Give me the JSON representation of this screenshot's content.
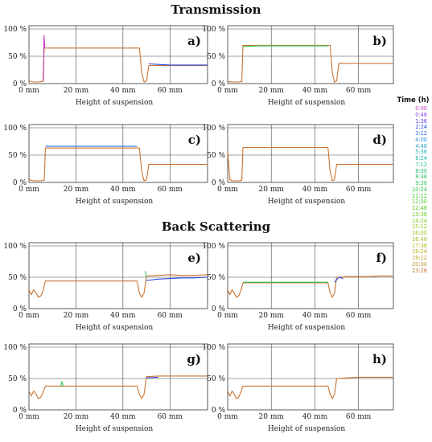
{
  "titles": {
    "transmission": "Transmission",
    "backscattering": "Back Scattering"
  },
  "legend": {
    "title": "Time (h)",
    "entries": [
      {
        "label": "0:00",
        "color": "#c040c0"
      },
      {
        "label": "0:48",
        "color": "#8a44d8"
      },
      {
        "label": "1:36",
        "color": "#5a3ee0"
      },
      {
        "label": "2:24",
        "color": "#2e49e0"
      },
      {
        "label": "3:12",
        "color": "#2a6ae2"
      },
      {
        "label": "4:00",
        "color": "#2a8ad8"
      },
      {
        "label": "4:48",
        "color": "#2aa0cc"
      },
      {
        "label": "5:36",
        "color": "#24b0c0"
      },
      {
        "label": "6:24",
        "color": "#22b8a8"
      },
      {
        "label": "7:12",
        "color": "#22bc92"
      },
      {
        "label": "8:00",
        "color": "#24c07c"
      },
      {
        "label": "8:48",
        "color": "#28c466"
      },
      {
        "label": "9:36",
        "color": "#2cc652"
      },
      {
        "label": "10:24",
        "color": "#30c840"
      },
      {
        "label": "11:12",
        "color": "#3cca30"
      },
      {
        "label": "12:00",
        "color": "#4ccc28"
      },
      {
        "label": "12:48",
        "color": "#5ccc24"
      },
      {
        "label": "13:36",
        "color": "#6ccc22"
      },
      {
        "label": "14:24",
        "color": "#7cca20"
      },
      {
        "label": "15:12",
        "color": "#8cc820"
      },
      {
        "label": "16:00",
        "color": "#9cc420"
      },
      {
        "label": "16:48",
        "color": "#aabe20"
      },
      {
        "label": "17:36",
        "color": "#b4b622"
      },
      {
        "label": "18:24",
        "color": "#bcac24"
      },
      {
        "label": "19:12",
        "color": "#c0a028"
      },
      {
        "label": "20:00",
        "color": "#c4942c"
      },
      {
        "label": "23:28",
        "color": "#c87432"
      }
    ]
  },
  "chart_data": [
    {
      "type": "line",
      "panel": "a)",
      "group": "Transmission",
      "xlabel": "Height of suspension",
      "x_ticks": [
        "0 mm",
        "20 mm",
        "40 mm",
        "60 mm"
      ],
      "y_ticks": [
        "0 %",
        "50 %",
        "100 %"
      ],
      "xlim": [
        0,
        76
      ],
      "ylim": [
        0,
        100
      ],
      "series": [
        {
          "color": "#c87432",
          "points": [
            [
              0,
              5
            ],
            [
              2,
              3
            ],
            [
              4,
              3
            ],
            [
              6,
              4
            ],
            [
              6.5,
              65
            ],
            [
              10,
              65
            ],
            [
              20,
              65
            ],
            [
              30,
              65
            ],
            [
              40,
              65
            ],
            [
              47,
              65
            ],
            [
              48,
              20
            ],
            [
              49,
              3
            ],
            [
              50,
              5
            ],
            [
              51,
              33
            ],
            [
              55,
              33
            ],
            [
              60,
              33
            ],
            [
              65,
              33
            ],
            [
              70,
              33
            ],
            [
              76,
              33
            ]
          ]
        },
        {
          "color": "#2a49e0",
          "points": [
            [
              51,
              36
            ],
            [
              55,
              35
            ],
            [
              60,
              34
            ],
            [
              65,
              34
            ],
            [
              70,
              34
            ],
            [
              76,
              34
            ]
          ]
        },
        {
          "color": "#c040c0",
          "points": [
            [
              6.2,
              5
            ],
            [
              6.4,
              88
            ],
            [
              6.8,
              65
            ]
          ]
        }
      ]
    },
    {
      "type": "line",
      "panel": "b)",
      "group": "Transmission",
      "xlabel": "Height of suspension",
      "x_ticks": [
        "0 mm",
        "20 mm",
        "40 mm",
        "60 mm"
      ],
      "y_ticks": [
        "0 %",
        "50 %",
        "100 %"
      ],
      "xlim": [
        0,
        76
      ],
      "ylim": [
        0,
        100
      ],
      "series": [
        {
          "color": "#c87432",
          "points": [
            [
              0,
              4
            ],
            [
              2,
              3
            ],
            [
              5,
              3
            ],
            [
              6.5,
              4
            ],
            [
              7,
              70
            ],
            [
              10,
              70
            ],
            [
              20,
              70
            ],
            [
              30,
              70
            ],
            [
              40,
              70
            ],
            [
              47,
              70
            ],
            [
              48,
              20
            ],
            [
              49,
              3
            ],
            [
              50,
              5
            ],
            [
              51,
              37
            ],
            [
              55,
              37
            ],
            [
              60,
              37
            ],
            [
              65,
              37
            ],
            [
              70,
              37
            ],
            [
              76,
              37
            ]
          ]
        },
        {
          "color": "#2cc652",
          "points": [
            [
              7,
              68
            ],
            [
              15,
              69
            ],
            [
              25,
              69
            ],
            [
              35,
              69
            ],
            [
              46,
              69
            ]
          ]
        }
      ]
    },
    {
      "type": "line",
      "panel": "c)",
      "group": "Transmission",
      "xlabel": "Height of suspension",
      "x_ticks": [
        "0 mm",
        "20 mm",
        "40 mm",
        "60 mm"
      ],
      "y_ticks": [
        "0 %",
        "50 %",
        "100 %"
      ],
      "xlim": [
        0,
        76
      ],
      "ylim": [
        0,
        100
      ],
      "series": [
        {
          "color": "#c87432",
          "points": [
            [
              0,
              5
            ],
            [
              2,
              3
            ],
            [
              5,
              3
            ],
            [
              6.5,
              4
            ],
            [
              7,
              63
            ],
            [
              10,
              63
            ],
            [
              20,
              63
            ],
            [
              30,
              63
            ],
            [
              40,
              63
            ],
            [
              47,
              63
            ],
            [
              48,
              20
            ],
            [
              49,
              3
            ],
            [
              50,
              5
            ],
            [
              51,
              33
            ],
            [
              55,
              33
            ],
            [
              60,
              33
            ],
            [
              65,
              33
            ],
            [
              70,
              33
            ],
            [
              76,
              33
            ]
          ]
        },
        {
          "color": "#2a6ae2",
          "points": [
            [
              7,
              66
            ],
            [
              15,
              66
            ],
            [
              25,
              66
            ],
            [
              35,
              66
            ],
            [
              46,
              66
            ]
          ]
        }
      ]
    },
    {
      "type": "line",
      "panel": "d)",
      "group": "Transmission",
      "xlabel": "Height of suspension",
      "x_ticks": [
        "0 mm",
        "20 mm",
        "40 mm",
        "60 mm"
      ],
      "y_ticks": [
        "0 %",
        "50 %",
        "100 %"
      ],
      "xlim": [
        0,
        76
      ],
      "ylim": [
        0,
        100
      ],
      "series": [
        {
          "color": "#c87432",
          "points": [
            [
              0,
              58
            ],
            [
              1,
              5
            ],
            [
              2,
              3
            ],
            [
              5,
              3
            ],
            [
              6.5,
              4
            ],
            [
              7,
              64
            ],
            [
              10,
              64
            ],
            [
              20,
              64
            ],
            [
              30,
              64
            ],
            [
              40,
              64
            ],
            [
              46,
              64
            ],
            [
              47,
              20
            ],
            [
              48,
              3
            ],
            [
              49,
              5
            ],
            [
              50,
              33
            ],
            [
              55,
              33
            ],
            [
              60,
              33
            ],
            [
              65,
              33
            ],
            [
              70,
              33
            ],
            [
              76,
              33
            ]
          ]
        }
      ]
    },
    {
      "type": "line",
      "panel": "e)",
      "group": "Back Scattering",
      "xlabel": "Height of suspension",
      "x_ticks": [
        "0 mm",
        "20 mm",
        "40 mm",
        "60 mm"
      ],
      "y_ticks": [
        "0 %",
        "50 %",
        "100 %"
      ],
      "xlim": [
        0,
        76
      ],
      "ylim": [
        0,
        100
      ],
      "series": [
        {
          "color": "#c87432",
          "points": [
            [
              0,
              30
            ],
            [
              1,
              22
            ],
            [
              2,
              30
            ],
            [
              3,
              25
            ],
            [
              4,
              18
            ],
            [
              5,
              20
            ],
            [
              6,
              28
            ],
            [
              7,
              44
            ],
            [
              10,
              44
            ],
            [
              20,
              44
            ],
            [
              30,
              44
            ],
            [
              40,
              44
            ],
            [
              46,
              44
            ],
            [
              47,
              25
            ],
            [
              48,
              18
            ],
            [
              49,
              25
            ],
            [
              50,
              52
            ],
            [
              55,
              53
            ],
            [
              60,
              54
            ],
            [
              65,
              53
            ],
            [
              70,
              53
            ],
            [
              76,
              54
            ]
          ]
        },
        {
          "color": "#2e49e0",
          "points": [
            [
              50,
              45
            ],
            [
              55,
              47
            ],
            [
              60,
              48
            ],
            [
              65,
              49
            ],
            [
              70,
              49
            ],
            [
              76,
              50
            ]
          ]
        },
        {
          "color": "#2cc652",
          "points": [
            [
              49.5,
              60
            ],
            [
              50,
              50
            ]
          ]
        }
      ]
    },
    {
      "type": "line",
      "panel": "f)",
      "group": "Back Scattering",
      "xlabel": "Height of suspension",
      "x_ticks": [
        "0 mm",
        "20 mm",
        "40 mm",
        "60 mm"
      ],
      "y_ticks": [
        "0 %",
        "50 %",
        "100 %"
      ],
      "xlim": [
        0,
        76
      ],
      "ylim": [
        0,
        100
      ],
      "series": [
        {
          "color": "#c87432",
          "points": [
            [
              0,
              30
            ],
            [
              1,
              22
            ],
            [
              2,
              30
            ],
            [
              3,
              25
            ],
            [
              4,
              18
            ],
            [
              5,
              20
            ],
            [
              6,
              28
            ],
            [
              7,
              41
            ],
            [
              10,
              41
            ],
            [
              20,
              41
            ],
            [
              30,
              41
            ],
            [
              40,
              41
            ],
            [
              46,
              41
            ],
            [
              47,
              25
            ],
            [
              48,
              18
            ],
            [
              49,
              25
            ],
            [
              50,
              50
            ],
            [
              55,
              51
            ],
            [
              60,
              51
            ],
            [
              65,
              51
            ],
            [
              70,
              52
            ],
            [
              76,
              52
            ]
          ]
        },
        {
          "color": "#2cc652",
          "points": [
            [
              7,
              42
            ],
            [
              20,
              42
            ],
            [
              35,
              42
            ],
            [
              46,
              42
            ]
          ]
        },
        {
          "color": "#2e49e0",
          "points": [
            [
              49,
              42
            ],
            [
              51,
              50
            ],
            [
              53,
              48
            ]
          ]
        }
      ]
    },
    {
      "type": "line",
      "panel": "g)",
      "group": "Back Scattering",
      "xlabel": "Height of suspension",
      "x_ticks": [
        "0 mm",
        "20 mm",
        "40 mm",
        "60 mm"
      ],
      "y_ticks": [
        "0 %",
        "50 %",
        "100 %"
      ],
      "xlim": [
        0,
        76
      ],
      "ylim": [
        0,
        100
      ],
      "series": [
        {
          "color": "#c87432",
          "points": [
            [
              0,
              30
            ],
            [
              1,
              22
            ],
            [
              2,
              30
            ],
            [
              3,
              25
            ],
            [
              4,
              18
            ],
            [
              5,
              20
            ],
            [
              6,
              28
            ],
            [
              7,
              38
            ],
            [
              10,
              38
            ],
            [
              20,
              38
            ],
            [
              30,
              38
            ],
            [
              40,
              38
            ],
            [
              46,
              38
            ],
            [
              47,
              25
            ],
            [
              48,
              18
            ],
            [
              49,
              25
            ],
            [
              50,
              53
            ],
            [
              55,
              54
            ],
            [
              60,
              54
            ],
            [
              65,
              54
            ],
            [
              70,
              54
            ],
            [
              76,
              54
            ]
          ]
        },
        {
          "color": "#2e49e0",
          "points": [
            [
              50,
              51
            ],
            [
              55,
              52
            ]
          ]
        },
        {
          "color": "#2cc652",
          "points": [
            [
              13.5,
              38
            ],
            [
              14,
              45
            ],
            [
              14.5,
              38
            ]
          ]
        }
      ]
    },
    {
      "type": "line",
      "panel": "h)",
      "group": "Back Scattering",
      "xlabel": "Height of suspension",
      "x_ticks": [
        "0 mm",
        "20 mm",
        "40 mm",
        "60 mm"
      ],
      "y_ticks": [
        "0 %",
        "50 %",
        "100 %"
      ],
      "xlim": [
        0,
        76
      ],
      "ylim": [
        0,
        100
      ],
      "series": [
        {
          "color": "#c87432",
          "points": [
            [
              0,
              30
            ],
            [
              1,
              22
            ],
            [
              2,
              30
            ],
            [
              3,
              25
            ],
            [
              4,
              18
            ],
            [
              5,
              20
            ],
            [
              6,
              28
            ],
            [
              7,
              38
            ],
            [
              10,
              38
            ],
            [
              20,
              38
            ],
            [
              30,
              38
            ],
            [
              40,
              38
            ],
            [
              46,
              38
            ],
            [
              47,
              25
            ],
            [
              48,
              18
            ],
            [
              49,
              25
            ],
            [
              50,
              50
            ],
            [
              55,
              51
            ],
            [
              60,
              52
            ],
            [
              65,
              52
            ],
            [
              70,
              52
            ],
            [
              76,
              52
            ]
          ]
        }
      ]
    }
  ]
}
